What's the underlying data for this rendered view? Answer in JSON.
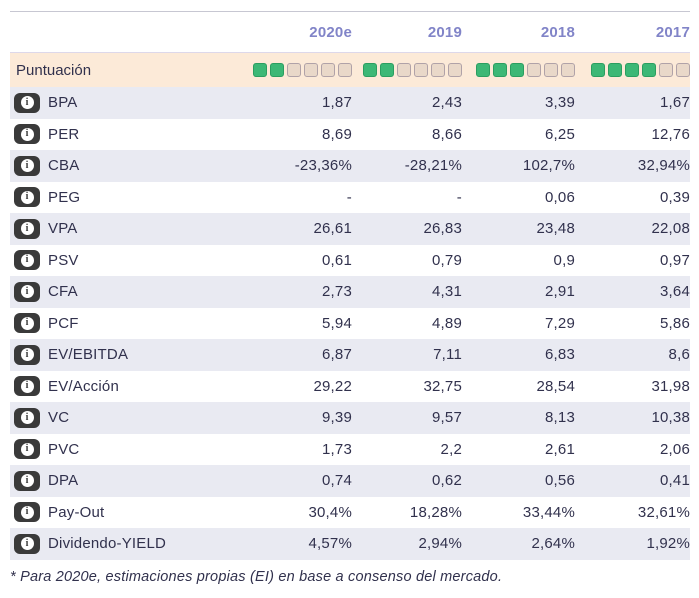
{
  "table": {
    "columns": [
      "2020e",
      "2019",
      "2018",
      "2017"
    ],
    "score_row": {
      "label": "Puntuación",
      "max_squares": 6,
      "scores": [
        2,
        2,
        3,
        4
      ]
    },
    "rows": [
      {
        "label": "BPA",
        "values": [
          "1,87",
          "2,43",
          "3,39",
          "1,67"
        ]
      },
      {
        "label": "PER",
        "values": [
          "8,69",
          "8,66",
          "6,25",
          "12,76"
        ]
      },
      {
        "label": "CBA",
        "values": [
          "-23,36%",
          "-28,21%",
          "102,7%",
          "32,94%"
        ]
      },
      {
        "label": "PEG",
        "values": [
          "-",
          "-",
          "0,06",
          "0,39"
        ]
      },
      {
        "label": "VPA",
        "values": [
          "26,61",
          "26,83",
          "23,48",
          "22,08"
        ]
      },
      {
        "label": "PSV",
        "values": [
          "0,61",
          "0,79",
          "0,9",
          "0,97"
        ]
      },
      {
        "label": "CFA",
        "values": [
          "2,73",
          "4,31",
          "2,91",
          "3,64"
        ]
      },
      {
        "label": "PCF",
        "values": [
          "5,94",
          "4,89",
          "7,29",
          "5,86"
        ]
      },
      {
        "label": "EV/EBITDA",
        "values": [
          "6,87",
          "7,11",
          "6,83",
          "8,6"
        ]
      },
      {
        "label": "EV/Acción",
        "values": [
          "29,22",
          "32,75",
          "28,54",
          "31,98"
        ]
      },
      {
        "label": "VC",
        "values": [
          "9,39",
          "9,57",
          "8,13",
          "10,38"
        ]
      },
      {
        "label": "PVC",
        "values": [
          "1,73",
          "2,2",
          "2,61",
          "2,06"
        ]
      },
      {
        "label": "DPA",
        "values": [
          "0,74",
          "0,62",
          "0,56",
          "0,41"
        ]
      },
      {
        "label": "Pay-Out",
        "values": [
          "30,4%",
          "18,28%",
          "33,44%",
          "32,61%"
        ]
      },
      {
        "label": "Dividendo-YIELD",
        "values": [
          "4,57%",
          "2,94%",
          "2,64%",
          "1,92%"
        ]
      }
    ],
    "footnote": "* Para 2020e, estimaciones propias (EI) en base a consenso del mercado.",
    "icons": {
      "info": "info-icon"
    },
    "colors": {
      "year_header": "#8184c8",
      "text": "#31314d",
      "score_row_bg": "#fcead8",
      "alt_row_bg": "#e9eaf2",
      "square_filled": "#3cb876",
      "square_empty": "#e9d8c9",
      "info_icon_bg": "#3a3a3a"
    }
  }
}
